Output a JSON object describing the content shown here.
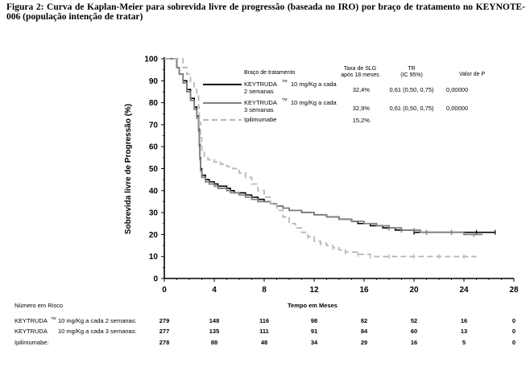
{
  "caption": "Figura 2: Curva de Kaplan-Meier para sobrevida livre de progressão (baseada no IRO) por braço de tratamento no KEYNOTE-006 (população intenção de tratar)",
  "chart_data": {
    "type": "line",
    "xlabel": "Tempo em Meses",
    "ylabel": "Sobrevida livre de Progressão (%)",
    "xlim": [
      0,
      28
    ],
    "ylim": [
      0,
      100
    ],
    "xticks": [
      0,
      4,
      8,
      12,
      16,
      20,
      24,
      28
    ],
    "yticks": [
      0,
      10,
      20,
      30,
      40,
      50,
      60,
      70,
      80,
      90,
      100
    ],
    "grid": false,
    "legend": {
      "title": "Braço de tratamento",
      "position": "top-right",
      "col_slg": "Taxa de SLG após 18 meses",
      "col_tr": "TR (IC 95%)",
      "col_p": "Valor de P"
    },
    "series": [
      {
        "name": "KEYTRUDA™ 10 mg/Kg a cada 2 semanas",
        "label_line1": "KEYTRUDA",
        "label_tm": "TM",
        "label_rest": "10 mg/Kg a cada",
        "label_line2": "2 semanas",
        "slg": "32,4%",
        "tr": "0,61 (0,50, 0,75)",
        "p": "0,00000",
        "color": "#000000",
        "dash": "",
        "points": [
          [
            0,
            100
          ],
          [
            0.9,
            100
          ],
          [
            1,
            96
          ],
          [
            1.2,
            93
          ],
          [
            1.5,
            90
          ],
          [
            1.8,
            86
          ],
          [
            2.1,
            82
          ],
          [
            2.4,
            78
          ],
          [
            2.6,
            74
          ],
          [
            2.75,
            68
          ],
          [
            2.8,
            61
          ],
          [
            2.85,
            55
          ],
          [
            2.9,
            50
          ],
          [
            3.0,
            47
          ],
          [
            3.3,
            45
          ],
          [
            3.6,
            44
          ],
          [
            4.0,
            43
          ],
          [
            4.3,
            42
          ],
          [
            4.6,
            42
          ],
          [
            5.0,
            41
          ],
          [
            5.3,
            40
          ],
          [
            5.6,
            39
          ],
          [
            6.0,
            39
          ],
          [
            6.5,
            38
          ],
          [
            7.0,
            37
          ],
          [
            7.5,
            36
          ],
          [
            8.0,
            35
          ],
          [
            8.5,
            34
          ],
          [
            9.0,
            33
          ],
          [
            9.5,
            32
          ],
          [
            10.0,
            31
          ],
          [
            10.5,
            31
          ],
          [
            11.0,
            30
          ],
          [
            11.5,
            30
          ],
          [
            12.0,
            29
          ],
          [
            12.5,
            29
          ],
          [
            13.0,
            28
          ],
          [
            13.5,
            28
          ],
          [
            14.0,
            27
          ],
          [
            14.5,
            27
          ],
          [
            15.0,
            26
          ],
          [
            15.5,
            25
          ],
          [
            16.0,
            25
          ],
          [
            16.5,
            24
          ],
          [
            17.0,
            24
          ],
          [
            17.5,
            23
          ],
          [
            18.0,
            23
          ],
          [
            18.5,
            22
          ],
          [
            19.0,
            22
          ],
          [
            19.5,
            22
          ],
          [
            20.0,
            21
          ],
          [
            20.5,
            21
          ],
          [
            21.0,
            21
          ],
          [
            22.0,
            21
          ],
          [
            23.0,
            21
          ],
          [
            24.0,
            21
          ],
          [
            25.0,
            21
          ],
          [
            26.0,
            21
          ],
          [
            26.5,
            21
          ]
        ],
        "n_at_risk": [
          "279",
          "148",
          "116",
          "98",
          "82",
          "52",
          "16",
          "0"
        ]
      },
      {
        "name": "KEYTRUDA™ 10 mg/Kg a cada 3 semanas",
        "label_line1": "KEYTRUDA",
        "label_tm": "TM",
        "label_rest": "10 mg/Kg a cada",
        "label_line2": "3 semanas",
        "slg": "32,9%",
        "tr": "0,61 (0,50, 0,75)",
        "p": "0,00000",
        "color": "#808080",
        "dash": "",
        "points": [
          [
            0,
            100
          ],
          [
            0.9,
            100
          ],
          [
            1,
            96
          ],
          [
            1.2,
            93
          ],
          [
            1.5,
            89
          ],
          [
            1.8,
            85
          ],
          [
            2.1,
            81
          ],
          [
            2.4,
            77
          ],
          [
            2.6,
            73
          ],
          [
            2.75,
            67
          ],
          [
            2.8,
            60
          ],
          [
            2.85,
            54
          ],
          [
            2.9,
            49
          ],
          [
            3.0,
            46
          ],
          [
            3.3,
            44
          ],
          [
            3.6,
            43
          ],
          [
            4.0,
            42
          ],
          [
            4.3,
            41
          ],
          [
            4.6,
            41
          ],
          [
            5.0,
            40
          ],
          [
            5.3,
            39
          ],
          [
            5.6,
            39
          ],
          [
            6.0,
            38
          ],
          [
            6.5,
            37
          ],
          [
            7.0,
            36
          ],
          [
            7.5,
            35
          ],
          [
            8.0,
            35
          ],
          [
            8.5,
            34
          ],
          [
            9.0,
            33
          ],
          [
            9.5,
            32
          ],
          [
            10.0,
            31
          ],
          [
            10.5,
            31
          ],
          [
            11.0,
            30
          ],
          [
            11.5,
            30
          ],
          [
            12.0,
            29
          ],
          [
            12.5,
            29
          ],
          [
            13.0,
            28
          ],
          [
            13.5,
            28
          ],
          [
            14.0,
            27
          ],
          [
            14.5,
            27
          ],
          [
            15.0,
            26
          ],
          [
            15.5,
            26
          ],
          [
            16.0,
            25
          ],
          [
            16.5,
            25
          ],
          [
            17.0,
            24
          ],
          [
            17.5,
            24
          ],
          [
            18.0,
            23
          ],
          [
            18.5,
            23
          ],
          [
            19.0,
            22
          ],
          [
            19.5,
            22
          ],
          [
            20.0,
            22
          ],
          [
            20.5,
            21
          ],
          [
            21.0,
            21
          ],
          [
            22.0,
            21
          ],
          [
            23.0,
            21
          ],
          [
            24.0,
            20
          ],
          [
            24.8,
            20
          ],
          [
            25.5,
            20
          ]
        ],
        "n_at_risk": [
          "277",
          "135",
          "111",
          "91",
          "84",
          "60",
          "13",
          "0"
        ]
      },
      {
        "name": "Ipilimumabe",
        "label_line1": "Ipilimumabe",
        "label_tm": "",
        "label_rest": "",
        "label_line2": "",
        "slg": "15,2%",
        "tr": "",
        "p": "",
        "color": "#b8b8b8",
        "dash": "7,4",
        "points": [
          [
            0,
            100
          ],
          [
            1.2,
            100
          ],
          [
            1.5,
            96
          ],
          [
            1.8,
            93
          ],
          [
            2.1,
            89
          ],
          [
            2.4,
            86
          ],
          [
            2.6,
            83
          ],
          [
            2.75,
            78
          ],
          [
            2.8,
            71
          ],
          [
            2.9,
            64
          ],
          [
            3.0,
            58
          ],
          [
            3.2,
            55
          ],
          [
            3.5,
            54
          ],
          [
            4.0,
            53
          ],
          [
            4.5,
            52
          ],
          [
            5.0,
            51
          ],
          [
            5.5,
            50
          ],
          [
            6.0,
            48
          ],
          [
            6.5,
            46
          ],
          [
            7.0,
            43
          ],
          [
            7.5,
            40
          ],
          [
            8.0,
            37
          ],
          [
            8.5,
            34
          ],
          [
            9.0,
            31
          ],
          [
            9.5,
            28
          ],
          [
            10.0,
            25
          ],
          [
            10.5,
            23
          ],
          [
            11.0,
            21
          ],
          [
            11.5,
            19
          ],
          [
            12.0,
            17
          ],
          [
            12.5,
            16
          ],
          [
            13.0,
            15
          ],
          [
            13.5,
            14
          ],
          [
            14.0,
            13
          ],
          [
            14.5,
            12
          ],
          [
            15.0,
            12
          ],
          [
            15.5,
            11
          ],
          [
            16.0,
            11
          ],
          [
            16.5,
            10
          ],
          [
            17.0,
            10
          ],
          [
            18.0,
            10
          ],
          [
            19.0,
            10
          ],
          [
            20.0,
            10
          ],
          [
            21.0,
            10
          ],
          [
            22.0,
            10
          ],
          [
            23.0,
            10
          ],
          [
            24.0,
            10
          ],
          [
            25.0,
            10
          ]
        ],
        "n_at_risk": [
          "278",
          "88",
          "48",
          "34",
          "29",
          "16",
          "5",
          "0"
        ]
      }
    ],
    "risk_table": {
      "title": "Número em Risco",
      "rows": [
        {
          "label": "KEYTRUDA",
          "tm": "TM",
          "rest": "10 mg/Kg a cada 2 semanas:"
        },
        {
          "label": "KEYTRUDA",
          "tm": "",
          "rest": "10 mg/Kg a cada 3 semanas:"
        },
        {
          "label": "Ipilimumabe:",
          "tm": "",
          "rest": ""
        }
      ]
    }
  }
}
